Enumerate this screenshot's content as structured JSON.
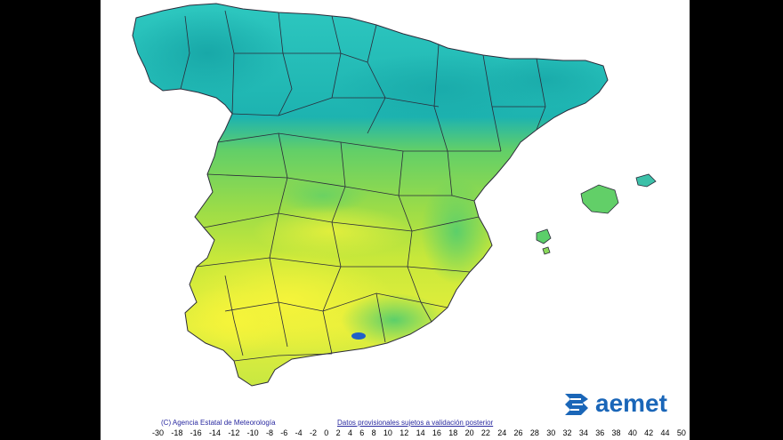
{
  "copyright": "(C) Agencia Estatal de Meteorología",
  "notice": "Datos provisionales sujetos a validación posterior",
  "logo_text": "aemet",
  "legend": {
    "ticks": [
      "-30",
      "-18",
      "-16",
      "-14",
      "-12",
      "-10",
      "-8",
      "-6",
      "-4",
      "-2",
      "0",
      "2",
      "4",
      "6",
      "8",
      "10",
      "12",
      "14",
      "16",
      "18",
      "20",
      "22",
      "24",
      "26",
      "28",
      "30",
      "32",
      "34",
      "36",
      "38",
      "40",
      "42",
      "44",
      "50"
    ]
  },
  "colors": {
    "cold": "#2ec8c0",
    "teal": "#1db3b0",
    "green": "#7fd84a",
    "yellow_green": "#c8e83a",
    "yellow": "#f0f23c",
    "blue_spot": "#2060c8",
    "border": "#2b2b3a",
    "logo": "#1a66b8"
  },
  "map": {
    "regions": [
      "Península Ibérica",
      "Islas Baleares"
    ]
  }
}
